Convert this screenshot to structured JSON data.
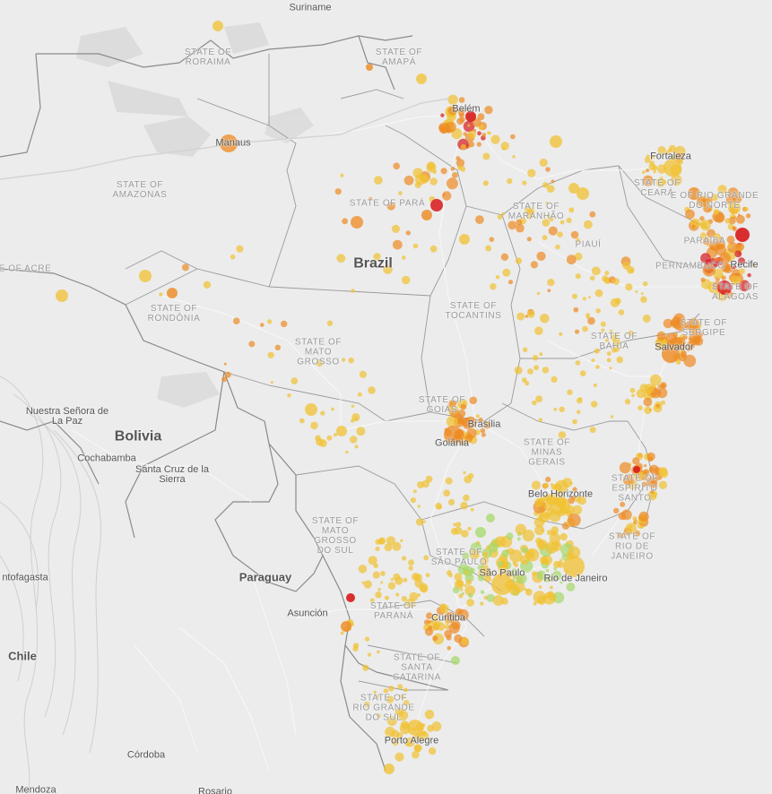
{
  "country_labels": [
    {
      "id": "brazil",
      "text": "Brazil",
      "big": true
    },
    {
      "id": "bolivia",
      "text": "Bolivia",
      "big": true
    },
    {
      "id": "paraguay",
      "text": "Paraguay",
      "big": false
    },
    {
      "id": "chile",
      "text": "Chile",
      "big": false
    },
    {
      "id": "suriname",
      "text": "Suriname",
      "big": false
    }
  ],
  "state_labels": [
    {
      "id": "roraima",
      "lines": [
        "STATE OF",
        "RORAIMA"
      ]
    },
    {
      "id": "amapa",
      "lines": [
        "STATE OF",
        "AMAPÁ"
      ]
    },
    {
      "id": "amazonas",
      "lines": [
        "STATE OF",
        "AMAZONAS"
      ]
    },
    {
      "id": "para",
      "lines": [
        "STATE OF PARÁ"
      ]
    },
    {
      "id": "acre",
      "lines": [
        "E OF ACRE"
      ]
    },
    {
      "id": "rondonia",
      "lines": [
        "STATE OF",
        "RONDÔNIA"
      ]
    },
    {
      "id": "maranhao",
      "lines": [
        "STATE OF",
        "MARANHÃO"
      ]
    },
    {
      "id": "ceara",
      "lines": [
        "STATE OF",
        "CEARÁ"
      ]
    },
    {
      "id": "rio-grande-do-norte",
      "lines": [
        "E OF RIO GRANDE",
        "DO NORTE"
      ]
    },
    {
      "id": "piaui",
      "lines": [
        "PIAUÍ"
      ]
    },
    {
      "id": "paraiba",
      "lines": [
        "PARAÍBA"
      ]
    },
    {
      "id": "pernambuco",
      "lines": [
        "PERNAMBUCO"
      ]
    },
    {
      "id": "alagoas",
      "lines": [
        "STATE OF",
        "ALAGOAS"
      ]
    },
    {
      "id": "tocantins",
      "lines": [
        "STATE OF",
        "TOCANTINS"
      ]
    },
    {
      "id": "mato-grosso",
      "lines": [
        "STATE OF",
        "MATO",
        "GROSSO"
      ]
    },
    {
      "id": "bahia",
      "lines": [
        "STATE OF",
        "BAHIA"
      ]
    },
    {
      "id": "sergipe",
      "lines": [
        "STATE OF",
        "SERGIPE"
      ]
    },
    {
      "id": "goias",
      "lines": [
        "STATE OF",
        "GOIÁS"
      ]
    },
    {
      "id": "minas-gerais",
      "lines": [
        "STATE OF",
        "MINAS",
        "GERAIS"
      ]
    },
    {
      "id": "espirito-santo",
      "lines": [
        "STATE OF",
        "ESPÍRITO",
        "SANTO"
      ]
    },
    {
      "id": "mato-grosso-do-sul",
      "lines": [
        "STATE OF",
        "MATO",
        "GROSSO",
        "DO SUL"
      ]
    },
    {
      "id": "sao-paulo",
      "lines": [
        "STATE OF",
        "SÃO PAULO"
      ]
    },
    {
      "id": "rio-de-janeiro",
      "lines": [
        "STATE OF",
        "RIO DE",
        "JANEIRO"
      ]
    },
    {
      "id": "parana",
      "lines": [
        "STATE OF",
        "PARANÁ"
      ]
    },
    {
      "id": "santa-catarina",
      "lines": [
        "STATE OF",
        "SANTA",
        "CATARINA"
      ]
    },
    {
      "id": "rio-grande-do-sul",
      "lines": [
        "STATE OF",
        "RIO GRANDE",
        "DO SUL"
      ]
    }
  ],
  "city_labels": [
    {
      "id": "manaus",
      "text": "Manaus"
    },
    {
      "id": "belem",
      "text": "Belém"
    },
    {
      "id": "fortaleza",
      "text": "Fortaleza"
    },
    {
      "id": "recife",
      "text": "Recife"
    },
    {
      "id": "salvador",
      "text": "Salvador"
    },
    {
      "id": "brasilia",
      "text": "Brasília"
    },
    {
      "id": "goiania",
      "text": "Goiânia"
    },
    {
      "id": "belo-horizonte",
      "text": "Belo Horizonte"
    },
    {
      "id": "rio-de-janeiro",
      "text": "Rio de Janeiro"
    },
    {
      "id": "sao-paulo",
      "text": "São Paulo"
    },
    {
      "id": "curitiba",
      "text": "Curitiba"
    },
    {
      "id": "porto-alegre",
      "text": "Porto Alegre"
    },
    {
      "id": "asuncion",
      "text": "Asunción"
    },
    {
      "id": "la-paz",
      "text": "Nuestra Señora de La Paz"
    },
    {
      "id": "cochabamba",
      "text": "Cochabamba"
    },
    {
      "id": "santa-cruz",
      "text": "Santa Cruz de la Sierra"
    },
    {
      "id": "antofagasta",
      "text": "ntofagasta"
    },
    {
      "id": "cordoba",
      "text": "Córdoba"
    },
    {
      "id": "mendoza",
      "text": "Mendoza"
    },
    {
      "id": "rosario",
      "text": "Rosario"
    }
  ],
  "colors": {
    "background": "#ececec",
    "land": "#e4e4e4",
    "forest": "#d6d6d6",
    "border": "#8a8a8a",
    "road": "#ffffff",
    "yellow": "#f1c232",
    "orange": "#ee8a22",
    "red": "#d7191c",
    "green": "#a6d96a"
  }
}
